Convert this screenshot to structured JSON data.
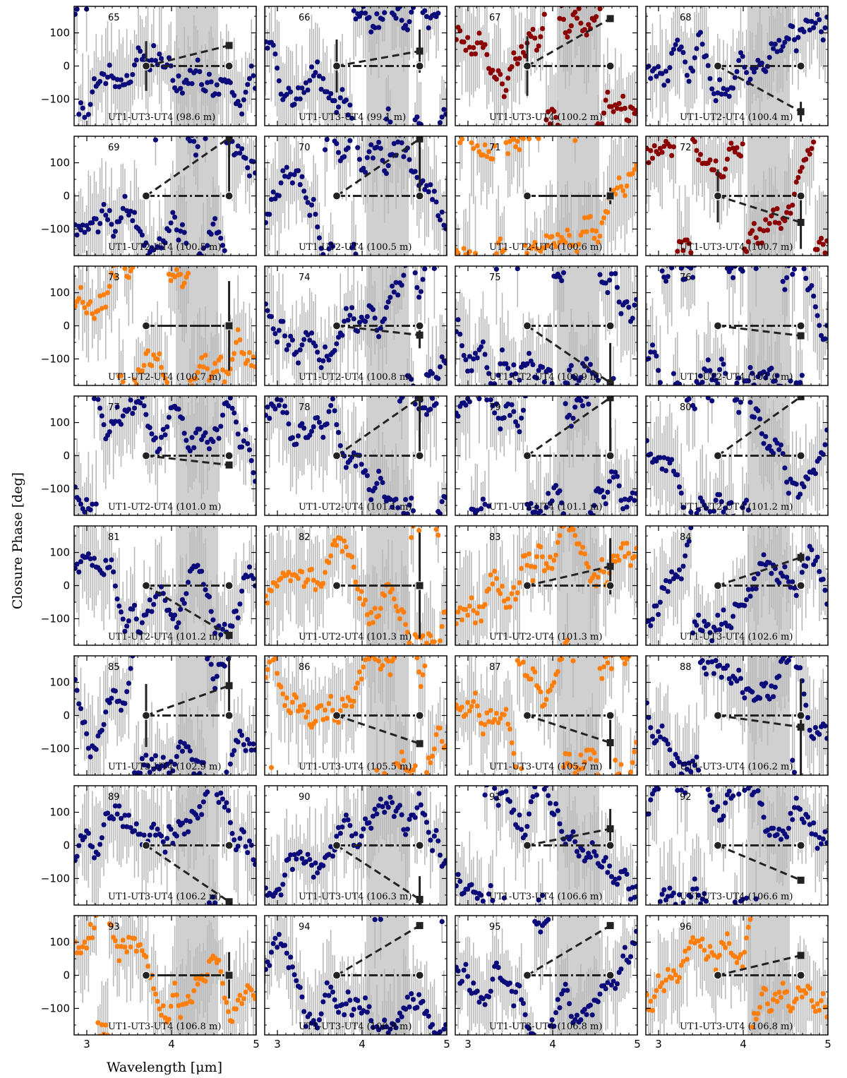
{
  "chart_data": {
    "type": "scatter",
    "title": "",
    "xlabel": "Wavelength [μm]",
    "ylabel": "Closure Phase [deg]",
    "xlim": [
      2.85,
      5.0
    ],
    "ylim": [
      -180,
      180
    ],
    "xticks": [
      3,
      4,
      5
    ],
    "yticks": [
      -100,
      0,
      100
    ],
    "grid": false,
    "layout": {
      "rows": 8,
      "cols": 4
    },
    "colors": {
      "navy": "#0a0a7a",
      "darkred": "#8b0000",
      "orange": "#ff7f0e",
      "errorbar": "#b9b9b9",
      "shade": "#d0d0d0",
      "model": "#222222"
    },
    "model_x": [
      3.7,
      4.68
    ],
    "panels": [
      {
        "id": "65",
        "label": "UT1-UT3-UT4 (98.6 m)",
        "color": "navy",
        "model_end": 62,
        "err_left": 75,
        "err_right": 0
      },
      {
        "id": "66",
        "label": "UT1-UT3-UT4 (99.1 m)",
        "color": "navy",
        "model_end": 45,
        "err_left": 80,
        "err_right": 65
      },
      {
        "id": "67",
        "label": "UT1-UT3-UT4 (100.2 m)",
        "color": "darkred",
        "model_end": 143,
        "err_left": 90,
        "err_right": 0
      },
      {
        "id": "68",
        "label": "UT1-UT2-UT4 (100.4 m)",
        "color": "navy",
        "model_end": -138,
        "err_left": 0,
        "err_right": 30
      },
      {
        "id": "69",
        "label": "UT1-UT2-UT4 (100.5 m)",
        "color": "navy",
        "model_end": 175,
        "err_left": 0,
        "err_right": 175
      },
      {
        "id": "70",
        "label": "UT1-UT2-UT4 (100.5 m)",
        "color": "navy",
        "model_end": 172,
        "err_left": 0,
        "err_right": 175
      },
      {
        "id": "71",
        "label": "UT1-UT2-UT4 (100.6 m)",
        "color": "orange",
        "model_end": 0,
        "err_left": 0,
        "err_right": 25
      },
      {
        "id": "72",
        "label": "UT1-UT3-UT4 (100.7 m)",
        "color": "darkred",
        "model_end": -80,
        "err_left": 80,
        "err_right": 80
      },
      {
        "id": "73",
        "label": "UT1-UT2-UT4 (100.7 m)",
        "color": "orange",
        "model_end": 0,
        "err_left": 0,
        "err_right": 135
      },
      {
        "id": "74",
        "label": "UT1-UT2-UT4 (100.8 m)",
        "color": "navy",
        "model_end": -28,
        "err_left": 0,
        "err_right": 40
      },
      {
        "id": "75",
        "label": "UT1-UT2-UT4 (100.9 m)",
        "color": "navy",
        "model_end": -172,
        "err_left": 0,
        "err_right": 120
      },
      {
        "id": "76",
        "label": "UT1-UT2-UT4 (101.0 m)",
        "color": "navy",
        "model_end": -30,
        "err_left": 0,
        "err_right": 10
      },
      {
        "id": "77",
        "label": "UT1-UT2-UT4 (101.0 m)",
        "color": "navy",
        "model_end": -28,
        "err_left": 0,
        "err_right": 0
      },
      {
        "id": "78",
        "label": "UT1-UT2-UT4 (101.1 m)",
        "color": "navy",
        "model_end": 175,
        "err_left": 0,
        "err_right": 175
      },
      {
        "id": "79",
        "label": "UT1-UT2-UT4 (101.1 m)",
        "color": "navy",
        "model_end": 175,
        "err_left": 0,
        "err_right": 175
      },
      {
        "id": "80",
        "label": "UT1-UT2-UT4 (101.2 m)",
        "color": "navy",
        "model_end": 178,
        "err_left": 0,
        "err_right": 0
      },
      {
        "id": "81",
        "label": "UT1-UT2-UT4 (101.2 m)",
        "color": "navy",
        "model_end": -150,
        "err_left": 0,
        "err_right": 0
      },
      {
        "id": "82",
        "label": "UT1-UT2-UT4 (101.3 m)",
        "color": "orange",
        "model_end": 0,
        "err_left": 0,
        "err_right": 160
      },
      {
        "id": "83",
        "label": "UT1-UT2-UT4 (101.3 m)",
        "color": "orange",
        "model_end": 58,
        "err_left": 0,
        "err_right": 85
      },
      {
        "id": "84",
        "label": "UT1-UT3-UT4 (102.6 m)",
        "color": "navy",
        "model_end": 85,
        "err_left": 0,
        "err_right": 15
      },
      {
        "id": "85",
        "label": "UT1-UT3-UT4 (102.9 m)",
        "color": "navy",
        "model_end": 90,
        "err_left": 95,
        "err_right": 90
      },
      {
        "id": "86",
        "label": "UT1-UT3-UT4 (105.5 m)",
        "color": "orange",
        "model_end": -85,
        "err_left": 0,
        "err_right": 0
      },
      {
        "id": "87",
        "label": "UT1-UT3-UT4 (105.7 m)",
        "color": "orange",
        "model_end": -82,
        "err_left": 0,
        "err_right": 80
      },
      {
        "id": "88",
        "label": "UT1-UT3-UT4 (106.2 m)",
        "color": "navy",
        "model_end": -35,
        "err_left": 0,
        "err_right": 145
      },
      {
        "id": "89",
        "label": "UT1-UT3-UT4 (106.2 m)",
        "color": "navy",
        "model_end": -170,
        "err_left": 0,
        "err_right": 0
      },
      {
        "id": "90",
        "label": "UT1-UT3-UT4 (106.3 m)",
        "color": "navy",
        "model_end": -163,
        "err_left": 0,
        "err_right": 70
      },
      {
        "id": "91",
        "label": "UT1-UT3-UT4 (106.6 m)",
        "color": "navy",
        "model_end": 50,
        "err_left": 0,
        "err_right": 60
      },
      {
        "id": "92",
        "label": "UT1-UT3-UT4 (106.6 m)",
        "color": "navy",
        "model_end": -105,
        "err_left": 0,
        "err_right": 0
      },
      {
        "id": "93",
        "label": "UT1-UT3-UT4 (106.8 m)",
        "color": "orange",
        "model_end": 0,
        "err_left": 0,
        "err_right": 70
      },
      {
        "id": "94",
        "label": "UT1-UT3-UT4 (106.8 m)",
        "color": "navy",
        "model_end": 150,
        "err_left": 0,
        "err_right": 0
      },
      {
        "id": "95",
        "label": "UT1-UT3-UT4 (106.8 m)",
        "color": "navy",
        "model_end": 150,
        "err_left": 0,
        "err_right": 0
      },
      {
        "id": "96",
        "label": "UT1-UT3-UT4 (106.8 m)",
        "color": "orange",
        "model_end": 60,
        "err_left": 0,
        "err_right": 0
      }
    ]
  }
}
